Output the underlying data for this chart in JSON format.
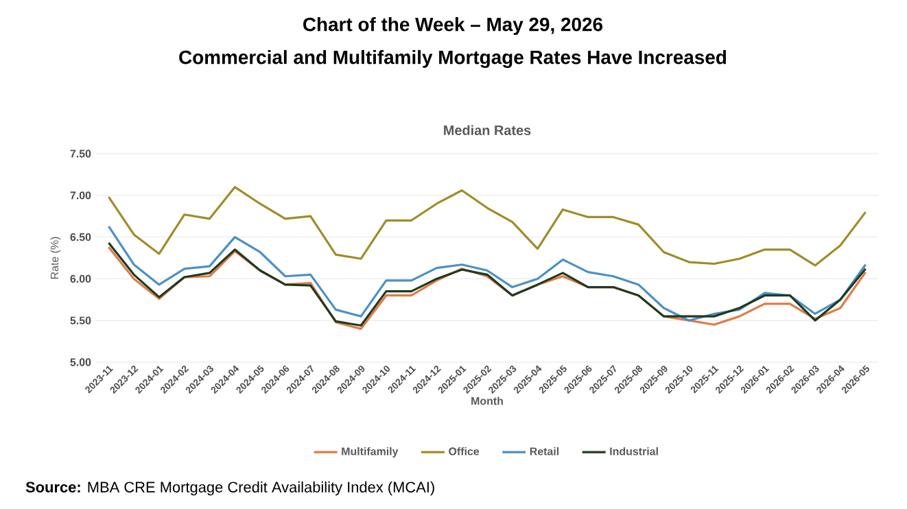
{
  "chart_data": {
    "type": "line",
    "title": "Chart of the Week – May 29, 2026",
    "subtitle": "Commercial and Multifamily Mortgage Rates Have Increased",
    "annotations": [
      "Median Rates",
      "**Source:** MBA CRE Mortgage Credit Availability Index (MCAI)"
    ],
    "xlabel": "Month",
    "ylabel": "Rate (%)",
    "categories": [
      "2023-11",
      "2023-12",
      "2024-01",
      "2024-02",
      "2024-03",
      "2024-04",
      "2024-05",
      "2024-06",
      "2024-07",
      "2024-08",
      "2024-09",
      "2024-10",
      "2024-11",
      "2024-12",
      "2025-01",
      "2025-02",
      "2025-03",
      "2025-04",
      "2025-05",
      "2025-06",
      "2025-07",
      "2025-08",
      "2025-09",
      "2025-10",
      "2025-11",
      "2025-12",
      "2026-01",
      "2026-02",
      "2026-03",
      "2026-04",
      "2026-05"
    ],
    "series": [
      {
        "name": "Multifamily",
        "color": "#e07b47",
        "values": [
          6.38,
          6.0,
          5.76,
          6.02,
          6.03,
          6.33,
          6.1,
          5.93,
          5.95,
          5.48,
          5.4,
          5.8,
          5.8,
          5.98,
          6.12,
          6.03,
          5.8,
          5.93,
          6.03,
          5.9,
          5.9,
          5.8,
          5.55,
          5.5,
          5.45,
          5.55,
          5.7,
          5.7,
          5.52,
          5.65,
          6.08
        ]
      },
      {
        "name": "Office",
        "color": "#a08c28",
        "values": [
          6.98,
          6.53,
          6.3,
          6.77,
          6.72,
          7.1,
          6.9,
          6.72,
          6.75,
          6.29,
          6.24,
          6.7,
          6.7,
          6.9,
          7.06,
          6.85,
          6.68,
          6.36,
          6.83,
          6.74,
          6.74,
          6.65,
          6.32,
          6.2,
          6.18,
          6.24,
          6.35,
          6.35,
          6.16,
          6.4,
          6.8
        ]
      },
      {
        "name": "Retail",
        "color": "#4a90c8",
        "values": [
          6.63,
          6.17,
          5.93,
          6.12,
          6.15,
          6.5,
          6.32,
          6.03,
          6.05,
          5.63,
          5.55,
          5.98,
          5.98,
          6.13,
          6.17,
          6.1,
          5.9,
          6.0,
          6.23,
          6.08,
          6.03,
          5.93,
          5.65,
          5.5,
          5.58,
          5.63,
          5.83,
          5.8,
          5.58,
          5.75,
          6.17
        ]
      },
      {
        "name": "Industrial",
        "color": "#1f3a1f",
        "values": [
          6.43,
          6.05,
          5.78,
          6.02,
          6.07,
          6.35,
          6.1,
          5.93,
          5.92,
          5.49,
          5.44,
          5.85,
          5.85,
          6.0,
          6.11,
          6.05,
          5.8,
          5.93,
          6.07,
          5.9,
          5.9,
          5.8,
          5.55,
          5.55,
          5.55,
          5.65,
          5.8,
          5.8,
          5.5,
          5.75,
          6.12
        ]
      }
    ],
    "ylim": [
      5.0,
      7.5
    ],
    "yticks": [
      {
        "value": 5.0,
        "label": "5.00"
      },
      {
        "value": 5.5,
        "label": "5.50"
      },
      {
        "value": 6.0,
        "label": "6.00"
      },
      {
        "value": 6.5,
        "label": "6.50"
      },
      {
        "value": 7.0,
        "label": "7.00"
      },
      {
        "value": 7.5,
        "label": "7.50"
      }
    ],
    "grid": "y",
    "legend": "bottom",
    "marker": "none",
    "line_style": "solid"
  }
}
